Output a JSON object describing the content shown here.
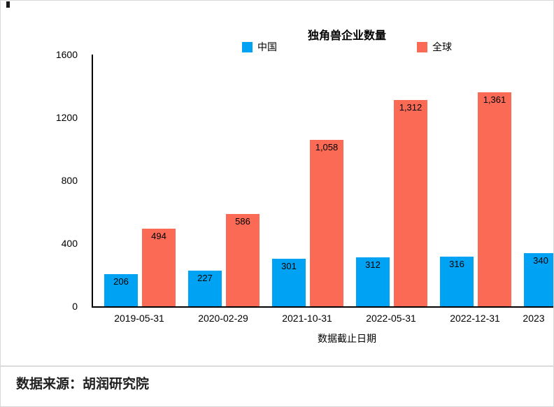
{
  "chart_data": {
    "type": "bar",
    "title": "独角兽企业数量",
    "xlabel": "数据截止日期",
    "ylabel": "",
    "ylim": [
      0,
      1600
    ],
    "yticks": [
      0,
      400,
      800,
      1200,
      1600
    ],
    "grid": false,
    "legend_position": "top",
    "categories": [
      "2019-05-31",
      "2020-02-29",
      "2021-10-31",
      "2022-05-31",
      "2022-12-31",
      "2023"
    ],
    "series": [
      {
        "name": "中国",
        "color": "#00a2f3",
        "values": [
          206,
          227,
          301,
          312,
          316,
          340
        ],
        "labels": [
          "206",
          "227",
          "301",
          "312",
          "316",
          "340"
        ]
      },
      {
        "name": "全球",
        "color": "#fa6a55",
        "values": [
          494,
          586,
          1058,
          1312,
          1361,
          null
        ],
        "labels": [
          "494",
          "586",
          "1,058",
          "1,312",
          "1,361",
          null
        ]
      }
    ]
  },
  "footer": {
    "source": "数据来源：胡润研究院"
  }
}
